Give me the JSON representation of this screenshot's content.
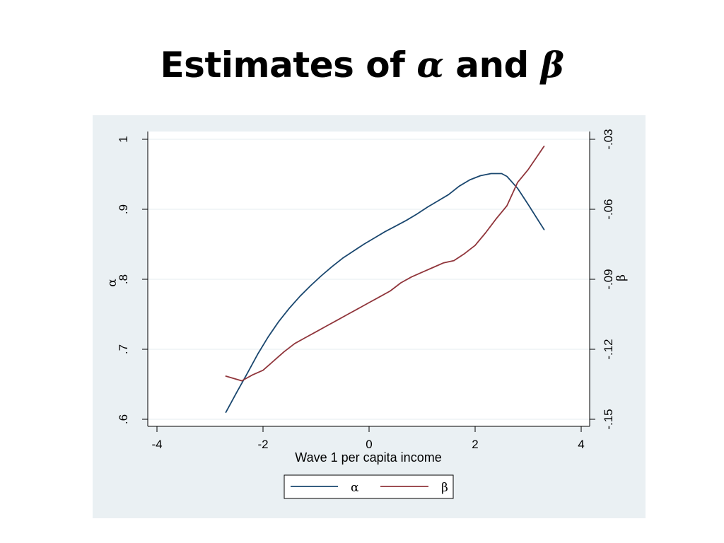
{
  "slide": {
    "title_prefix": "Estimates of ",
    "title_alpha": "α",
    "title_middle": " and ",
    "title_beta": "β"
  },
  "chart_data": {
    "type": "line",
    "xlabel": "Wave 1 per capita income",
    "ylabel_left": "α",
    "ylabel_right": "β",
    "xlim": [
      -4,
      4
    ],
    "ylim_left": [
      0.6,
      1.0
    ],
    "ylim_right": [
      -0.15,
      -0.03
    ],
    "x_ticks": [
      -4,
      -2,
      0,
      2,
      4
    ],
    "x_tick_labels": [
      "-4",
      "-2",
      "0",
      "2",
      "4"
    ],
    "y_left_ticks": [
      0.6,
      0.7,
      0.8,
      0.9,
      1.0
    ],
    "y_left_tick_labels": [
      ".6",
      ".7",
      ".8",
      ".9",
      "1"
    ],
    "y_right_ticks": [
      -0.15,
      -0.12,
      -0.09,
      -0.06,
      -0.03
    ],
    "y_right_tick_labels": [
      "-.15",
      "-.12",
      "-.09",
      "-.06",
      "-.03"
    ],
    "grid": true,
    "legend_position": "bottom",
    "series": [
      {
        "name": "α",
        "axis": "left",
        "color": "#1a476f",
        "x": [
          -2.7,
          -2.5,
          -2.3,
          -2.1,
          -1.9,
          -1.7,
          -1.5,
          -1.3,
          -1.1,
          -0.9,
          -0.7,
          -0.5,
          -0.3,
          -0.1,
          0.1,
          0.3,
          0.5,
          0.7,
          0.9,
          1.1,
          1.3,
          1.5,
          1.7,
          1.9,
          2.1,
          2.3,
          2.5,
          2.6,
          2.8,
          3.0,
          3.3
        ],
        "y": [
          0.61,
          0.638,
          0.665,
          0.693,
          0.718,
          0.74,
          0.759,
          0.776,
          0.791,
          0.805,
          0.818,
          0.83,
          0.84,
          0.85,
          0.859,
          0.868,
          0.876,
          0.884,
          0.893,
          0.903,
          0.912,
          0.921,
          0.933,
          0.942,
          0.948,
          0.951,
          0.951,
          0.947,
          0.93,
          0.907,
          0.871
        ]
      },
      {
        "name": "β",
        "axis": "right",
        "color": "#90353b",
        "x": [
          -2.7,
          -2.4,
          -2.2,
          -2.0,
          -1.8,
          -1.6,
          -1.4,
          -1.2,
          -1.0,
          -0.8,
          -0.6,
          -0.4,
          -0.2,
          0.0,
          0.2,
          0.4,
          0.6,
          0.8,
          1.0,
          1.2,
          1.4,
          1.6,
          1.8,
          2.0,
          2.2,
          2.4,
          2.6,
          2.8,
          3.0,
          3.3
        ],
        "y": [
          -0.1315,
          -0.1335,
          -0.131,
          -0.129,
          -0.125,
          -0.121,
          -0.1175,
          -0.115,
          -0.1125,
          -0.11,
          -0.1075,
          -0.105,
          -0.1025,
          -0.1,
          -0.0975,
          -0.095,
          -0.0915,
          -0.089,
          -0.087,
          -0.085,
          -0.083,
          -0.082,
          -0.079,
          -0.0755,
          -0.07,
          -0.064,
          -0.0585,
          -0.0485,
          -0.043,
          -0.033
        ]
      }
    ]
  }
}
